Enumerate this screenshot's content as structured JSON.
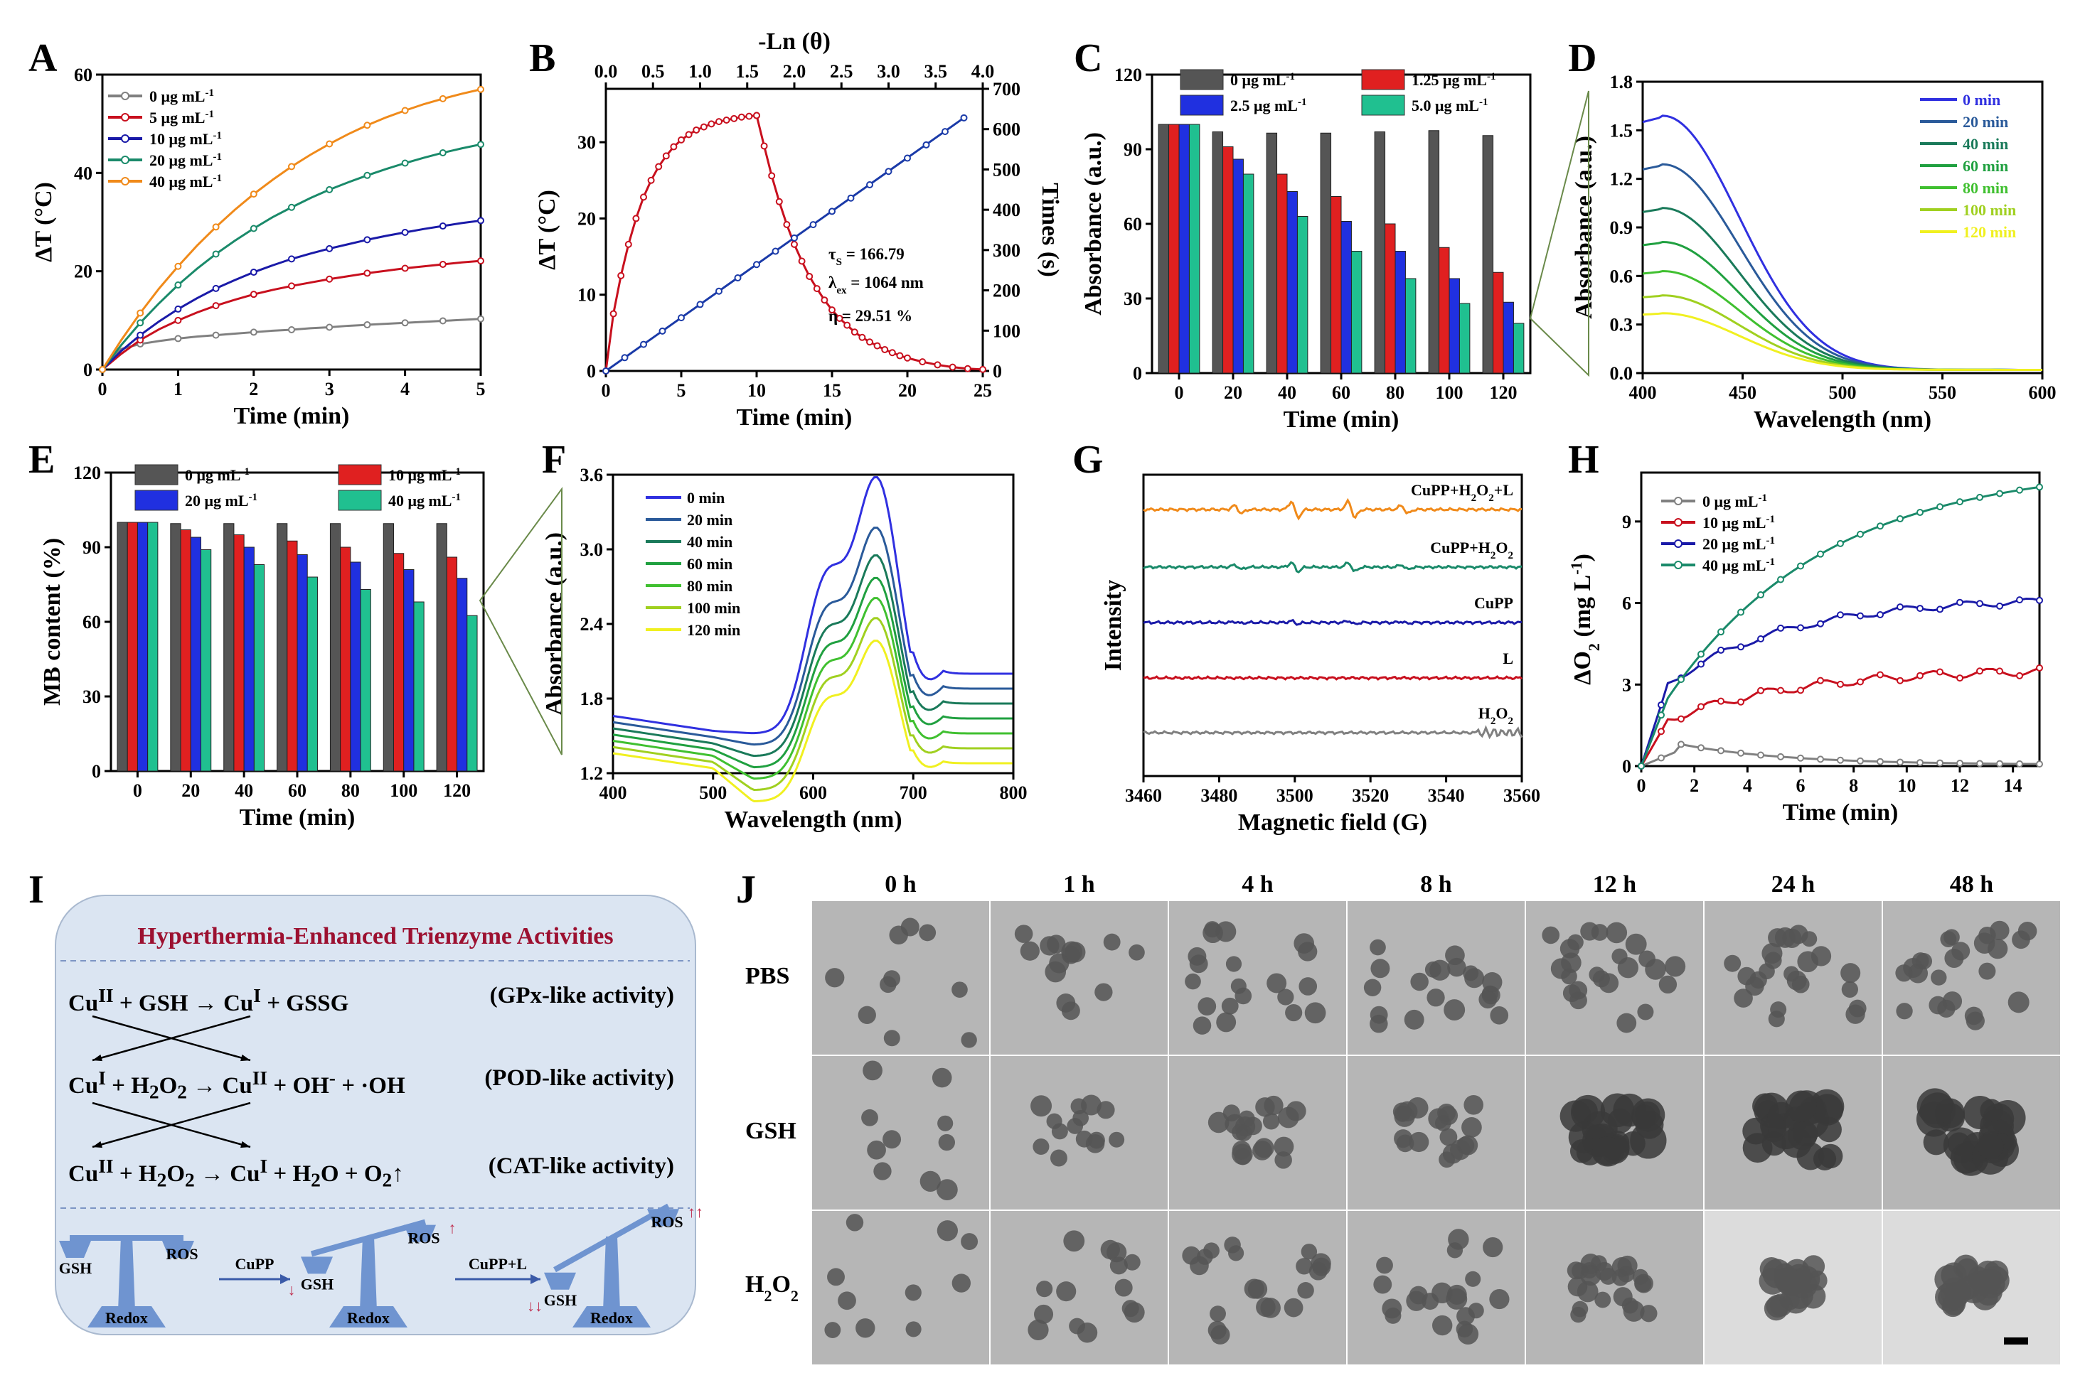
{
  "panels": {
    "A": {
      "label": "A",
      "xlabel": "Time (min)",
      "ylabel": "ΔT (°C)"
    },
    "B": {
      "label": "B",
      "xlabel": "Time (min)",
      "ylabel": "ΔT (°C)",
      "ylabel_right": "Times (s)",
      "xlabel_top": "-Ln (θ)",
      "ann1": "τ",
      "ann1_sub": "S",
      "ann1_val": " = 166.79",
      "ann2": "λ",
      "ann2_sub": "ex",
      "ann2_val": " = 1064 nm",
      "ann3": "η  = 29.51 %"
    },
    "C": {
      "label": "C",
      "xlabel": "Time (min)",
      "ylabel": "Absorbance (a.u.)"
    },
    "D": {
      "label": "D",
      "xlabel": "Wavelength (nm)",
      "ylabel": "Absorbance (a.u.)"
    },
    "E": {
      "label": "E",
      "xlabel": "Time (min)",
      "ylabel": "MB content (%)"
    },
    "F": {
      "label": "F",
      "xlabel": "Wavelength (nm)",
      "ylabel": "Absorbance (a.u.)"
    },
    "G": {
      "label": "G",
      "xlabel": "Magnetic field (G)",
      "ylabel": "Intensity"
    },
    "H": {
      "label": "H",
      "xlabel": "Time (min)",
      "ylabel": "ΔO",
      "ylabel_sub": "2",
      "ylabel_unit": " (mg L",
      "ylabel_sup": "-1",
      "ylabel_end": ")"
    },
    "I": {
      "label": "I"
    },
    "J": {
      "label": "J"
    }
  },
  "chart_data": [
    {
      "id": "A",
      "type": "line",
      "xlim": [
        0,
        5
      ],
      "ylim": [
        0,
        60
      ],
      "xticks": [
        0,
        1,
        2,
        3,
        4,
        5
      ],
      "yticks": [
        0,
        20,
        40,
        60
      ],
      "x": [
        0,
        0.25,
        0.5,
        0.75,
        1,
        1.25,
        1.5,
        1.75,
        2,
        2.25,
        2.5,
        2.75,
        3,
        3.25,
        3.5,
        3.75,
        4,
        4.25,
        4.5,
        4.75,
        5
      ],
      "series": [
        {
          "name": "0 μg mL",
          "sup": "-1",
          "color": "#808080",
          "values": [
            0,
            4.2,
            5.2,
            5.8,
            6.3,
            6.7,
            7.0,
            7.3,
            7.6,
            7.9,
            8.1,
            8.4,
            8.6,
            8.9,
            9.1,
            9.3,
            9.5,
            9.7,
            9.9,
            10.1,
            10.3
          ]
        },
        {
          "name": "5 μg mL",
          "sup": "-1",
          "color": "#c8101e",
          "values": [
            0,
            3.2,
            6.0,
            8.2,
            10.0,
            11.6,
            13.0,
            14.2,
            15.3,
            16.2,
            17.0,
            17.7,
            18.4,
            19.0,
            19.6,
            20.1,
            20.6,
            21.0,
            21.4,
            21.8,
            22.1
          ]
        },
        {
          "name": "10 μg mL",
          "sup": "-1",
          "color": "#1a1aa8",
          "values": [
            0,
            3.8,
            7.0,
            9.8,
            12.3,
            14.5,
            16.5,
            18.2,
            19.8,
            21.2,
            22.5,
            23.6,
            24.6,
            25.5,
            26.4,
            27.2,
            27.9,
            28.6,
            29.2,
            29.8,
            30.3
          ]
        },
        {
          "name": "20 μg mL",
          "sup": "-1",
          "color": "#1a8a6a",
          "values": [
            0,
            5.0,
            9.5,
            13.5,
            17.2,
            20.5,
            23.5,
            26.2,
            28.7,
            31.0,
            33.0,
            34.9,
            36.6,
            38.1,
            39.5,
            40.8,
            42.0,
            43.1,
            44.1,
            45.0,
            45.8
          ]
        },
        {
          "name": "40 μg mL",
          "sup": "-1",
          "color": "#f08a1a",
          "values": [
            0,
            6.0,
            11.5,
            16.5,
            21.0,
            25.2,
            29.0,
            32.5,
            35.7,
            38.6,
            41.3,
            43.7,
            45.9,
            47.9,
            49.7,
            51.3,
            52.7,
            54.0,
            55.1,
            56.1,
            57.0
          ]
        }
      ]
    },
    {
      "id": "B",
      "type": "line",
      "xlim": [
        0,
        25
      ],
      "ylim": [
        0,
        37
      ],
      "ylim_right": [
        0,
        700
      ],
      "xlim_top": [
        0,
        4
      ],
      "xticks": [
        0,
        5,
        10,
        15,
        20,
        25
      ],
      "yticks": [
        0,
        10,
        20,
        30
      ],
      "yticks_right": [
        0,
        100,
        200,
        300,
        400,
        500,
        600,
        700
      ],
      "xticks_top": [
        "0.0",
        "0.5",
        "1.0",
        "1.5",
        "2.0",
        "2.5",
        "3.0",
        "3.5",
        "4.0"
      ],
      "heating": {
        "color": "#c8101e",
        "x": [
          0,
          0.5,
          1,
          1.5,
          2,
          2.5,
          3,
          3.5,
          4,
          4.5,
          5,
          5.5,
          6,
          6.5,
          7,
          7.5,
          8,
          8.5,
          9,
          9.5,
          10
        ],
        "y": [
          0,
          7.5,
          12.5,
          16.6,
          20,
          22.8,
          25,
          26.8,
          28.2,
          29.4,
          30.3,
          31,
          31.6,
          32,
          32.4,
          32.7,
          32.9,
          33.1,
          33.3,
          33.4,
          33.5
        ]
      },
      "cooling": {
        "color": "#c8101e",
        "x": [
          10,
          10.5,
          11,
          11.5,
          12,
          12.5,
          13,
          13.5,
          14,
          14.5,
          15,
          15.5,
          16,
          16.5,
          17,
          17.5,
          18,
          18.5,
          19,
          19.5,
          20,
          21,
          22,
          23,
          24,
          25
        ],
        "y": [
          33.5,
          29.5,
          25.6,
          22.2,
          19.2,
          16.6,
          14.4,
          12.4,
          10.8,
          9.3,
          8.0,
          6.9,
          6.0,
          5.1,
          4.4,
          3.8,
          3.3,
          2.8,
          2.4,
          2.0,
          1.7,
          1.2,
          0.8,
          0.5,
          0.3,
          0.2
        ]
      },
      "fit": {
        "color": "#1a3aa8",
        "x_top": [
          0,
          0.2,
          0.4,
          0.6,
          0.8,
          1.0,
          1.2,
          1.4,
          1.6,
          1.8,
          2.0,
          2.2,
          2.4,
          2.6,
          2.8,
          3.0,
          3.2,
          3.4,
          3.6,
          3.8
        ],
        "y_right": [
          0,
          33,
          66,
          99,
          132,
          165,
          198,
          231,
          264,
          297,
          330,
          363,
          396,
          429,
          462,
          495,
          528,
          561,
          594,
          628
        ]
      }
    },
    {
      "id": "C",
      "type": "bar",
      "categories": [
        "0",
        "20",
        "40",
        "60",
        "80",
        "100",
        "120"
      ],
      "ylim": [
        0,
        120
      ],
      "yticks": [
        0,
        30,
        60,
        90,
        120
      ],
      "series": [
        {
          "name": "0 μg mL",
          "sup": "-1",
          "color": "#555555",
          "values": [
            100,
            97,
            96.5,
            96.5,
            97,
            97.5,
            95.5
          ]
        },
        {
          "name": "1.25 μg mL",
          "sup": "-1",
          "color": "#e02020",
          "values": [
            100,
            91,
            80,
            71,
            60,
            50.5,
            40.5
          ]
        },
        {
          "name": "2.5 μg mL",
          "sup": "-1",
          "color": "#2030e0",
          "values": [
            100,
            86,
            73,
            61,
            49,
            38,
            28.5
          ]
        },
        {
          "name": "5.0 μg mL",
          "sup": "-1",
          "color": "#20c090",
          "values": [
            100,
            80,
            63,
            49,
            38,
            28,
            20
          ]
        }
      ]
    },
    {
      "id": "D",
      "type": "line",
      "xlim": [
        400,
        600
      ],
      "ylim": [
        0,
        1.8
      ],
      "xticks": [
        400,
        450,
        500,
        550,
        600
      ],
      "yticks": [
        "0.0",
        "0.3",
        "0.6",
        "0.9",
        "1.2",
        "1.5",
        "1.8"
      ],
      "series": [
        {
          "name": "0 min",
          "color": "#3030e0",
          "peak": 1.57
        },
        {
          "name": "20 min",
          "color": "#2a5a9a",
          "peak": 1.27
        },
        {
          "name": "40 min",
          "color": "#1a7a5a",
          "peak": 1.0
        },
        {
          "name": "60 min",
          "color": "#20a040",
          "peak": 0.79
        },
        {
          "name": "80 min",
          "color": "#40c030",
          "peak": 0.61
        },
        {
          "name": "100 min",
          "color": "#a0d020",
          "peak": 0.46
        },
        {
          "name": "120 min",
          "color": "#f0f020",
          "peak": 0.35
        }
      ]
    },
    {
      "id": "E",
      "type": "bar",
      "categories": [
        "0",
        "20",
        "40",
        "60",
        "80",
        "100",
        "120"
      ],
      "ylim": [
        0,
        120
      ],
      "yticks": [
        0,
        30,
        60,
        90,
        120
      ],
      "series": [
        {
          "name": "0 μg mL",
          "sup": "-1",
          "color": "#555555",
          "values": [
            100,
            99.5,
            99.5,
            99.5,
            99.5,
            99.5,
            99.5
          ]
        },
        {
          "name": "10 μg mL",
          "sup": "-1",
          "color": "#e02020",
          "values": [
            100,
            97,
            95,
            92.5,
            90,
            87.5,
            86
          ]
        },
        {
          "name": "20 μg mL",
          "sup": "-1",
          "color": "#2030e0",
          "values": [
            100,
            94,
            90,
            87,
            84,
            81,
            77.5
          ]
        },
        {
          "name": "40 μg mL",
          "sup": "-1",
          "color": "#20c090",
          "values": [
            100,
            89,
            83,
            78,
            73,
            68,
            62.5
          ]
        }
      ]
    },
    {
      "id": "F",
      "type": "line",
      "xlim": [
        400,
        800
      ],
      "ylim": [
        1.2,
        3.6
      ],
      "xticks": [
        400,
        500,
        600,
        700,
        800
      ],
      "yticks": [
        "1.2",
        "1.8",
        "2.4",
        "3.0",
        "3.6"
      ],
      "series": [
        {
          "name": "0 min",
          "color": "#3030e0",
          "peak": 3.54
        },
        {
          "name": "20 min",
          "color": "#2a5a9a",
          "peak": 3.14
        },
        {
          "name": "40 min",
          "color": "#1a7a5a",
          "peak": 2.92
        },
        {
          "name": "60 min",
          "color": "#20a040",
          "peak": 2.74
        },
        {
          "name": "80 min",
          "color": "#40c030",
          "peak": 2.58
        },
        {
          "name": "100 min",
          "color": "#a0d020",
          "peak": 2.42
        },
        {
          "name": "120 min",
          "color": "#f0f020",
          "peak": 2.24
        }
      ]
    },
    {
      "id": "G",
      "type": "line",
      "xlim": [
        3460,
        3560
      ],
      "xticks": [
        3460,
        3480,
        3500,
        3520,
        3540,
        3560
      ],
      "series": [
        {
          "name": "CuPP+H2O2+L",
          "color": "#f08a1a",
          "amp": 1.0
        },
        {
          "name": "CuPP+H2O2",
          "color": "#1a8a6a",
          "amp": 0.55
        },
        {
          "name": "CuPP",
          "color": "#1a1aa8",
          "amp": 0.2
        },
        {
          "name": "L",
          "color": "#c8101e",
          "amp": 0
        },
        {
          "name": "H2O2",
          "color": "#808080",
          "amp": 0
        }
      ]
    },
    {
      "id": "H",
      "type": "line",
      "xlim": [
        0,
        15
      ],
      "ylim": [
        0,
        10.8
      ],
      "xticks": [
        0,
        2,
        4,
        6,
        8,
        10,
        12,
        14
      ],
      "yticks": [
        0,
        3,
        6,
        9
      ],
      "series": [
        {
          "name": "0 μg mL",
          "sup": "-1",
          "color": "#808080"
        },
        {
          "name": "10 μg mL",
          "sup": "-1",
          "color": "#c8101e"
        },
        {
          "name": "20 μg mL",
          "sup": "-1",
          "color": "#1a1aa8"
        },
        {
          "name": "40 μg mL",
          "sup": "-1",
          "color": "#1a8a6a"
        }
      ]
    }
  ],
  "panel_I": {
    "title": "Hyperthermia-Enhanced Trienzyme Activities",
    "reactions": [
      {
        "text": "Cu<sup>II</sup> + GSH → Cu<sup>I</sup> + GSSG",
        "activity": "(GPx-like activity)"
      },
      {
        "text": "Cu<sup>I</sup> + H<sub>2</sub>O<sub>2</sub> → Cu<sup>II</sup> + OH<sup>-</sup> + ·OH",
        "activity": "(POD-like activity)"
      },
      {
        "text": "Cu<sup>II</sup> + H<sub>2</sub>O<sub>2</sub> → Cu<sup>I</sup> + H<sub>2</sub>O + O<sub>2</sub>↑",
        "activity": "(CAT-like activity)"
      }
    ],
    "scale_labels": {
      "gsh": "GSH",
      "ros": "ROS",
      "redox": "Redox",
      "arrow1": "CuPP",
      "arrow2": "CuPP+L"
    }
  },
  "panel_J": {
    "columns": [
      "0 h",
      "1 h",
      "4 h",
      "8 h",
      "12 h",
      "24 h",
      "48 h"
    ],
    "rows": [
      "PBS",
      "GSH",
      "H2O2"
    ]
  }
}
